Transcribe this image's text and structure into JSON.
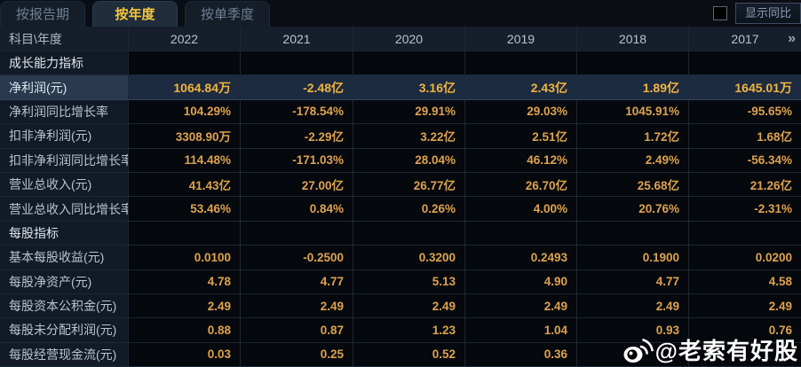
{
  "tabs": [
    {
      "label": "按报告期",
      "active": false
    },
    {
      "label": "按年度",
      "active": true
    },
    {
      "label": "按单季度",
      "active": false
    }
  ],
  "controls": {
    "show_yoy_label": "显示同比",
    "checkbox_checked": false
  },
  "table": {
    "corner_label": "科目\\年度",
    "years": [
      "2022",
      "2021",
      "2020",
      "2019",
      "2018",
      "2017"
    ],
    "more_icon": "»",
    "rows": [
      {
        "type": "section",
        "label": "成长能力指标",
        "values": [
          "",
          "",
          "",
          "",
          "",
          ""
        ]
      },
      {
        "type": "highlight",
        "label": "净利润(元)",
        "values": [
          "1064.84万",
          "-2.48亿",
          "3.16亿",
          "2.43亿",
          "1.89亿",
          "1645.01万"
        ]
      },
      {
        "type": "normal",
        "label": "净利润同比增长率",
        "values": [
          "104.29%",
          "-178.54%",
          "29.91%",
          "29.03%",
          "1045.91%",
          "-95.65%"
        ]
      },
      {
        "type": "normal",
        "label": "扣非净利润(元)",
        "values": [
          "3308.90万",
          "-2.29亿",
          "3.22亿",
          "2.51亿",
          "1.72亿",
          "1.68亿"
        ]
      },
      {
        "type": "normal",
        "label": "扣非净利润同比增长率",
        "values": [
          "114.48%",
          "-171.03%",
          "28.04%",
          "46.12%",
          "2.49%",
          "-56.34%"
        ]
      },
      {
        "type": "normal",
        "label": "营业总收入(元)",
        "values": [
          "41.43亿",
          "27.00亿",
          "26.77亿",
          "26.70亿",
          "25.68亿",
          "21.26亿"
        ]
      },
      {
        "type": "normal",
        "label": "营业总收入同比增长率",
        "values": [
          "53.46%",
          "0.84%",
          "0.26%",
          "4.00%",
          "20.76%",
          "-2.31%"
        ]
      },
      {
        "type": "section",
        "label": "每股指标",
        "values": [
          "",
          "",
          "",
          "",
          "",
          ""
        ]
      },
      {
        "type": "normal",
        "label": "基本每股收益(元)",
        "values": [
          "0.0100",
          "-0.2500",
          "0.3200",
          "0.2493",
          "0.1900",
          "0.0200"
        ]
      },
      {
        "type": "normal",
        "label": "每股净资产(元)",
        "values": [
          "4.78",
          "4.77",
          "5.13",
          "4.90",
          "4.77",
          "4.58"
        ]
      },
      {
        "type": "normal",
        "label": "每股资本公积金(元)",
        "values": [
          "2.49",
          "2.49",
          "2.49",
          "2.49",
          "2.49",
          "2.49"
        ]
      },
      {
        "type": "normal",
        "label": "每股未分配利润(元)",
        "values": [
          "0.88",
          "0.87",
          "1.23",
          "1.04",
          "0.93",
          "0.76"
        ]
      },
      {
        "type": "normal",
        "label": "每股经营现金流(元)",
        "values": [
          "0.03",
          "0.25",
          "0.52",
          "0.36",
          "",
          ""
        ]
      }
    ]
  },
  "watermark": {
    "text": "@老索有好股"
  },
  "colors": {
    "accent_gold": "#f4c63d",
    "value_gold": "#dda24f",
    "highlight_row_bg": "#1d2b41",
    "header_bg": "#151e2a",
    "label_bg": "#121a25",
    "data_bg": "#05080d",
    "grid_line": "#1b2836"
  }
}
